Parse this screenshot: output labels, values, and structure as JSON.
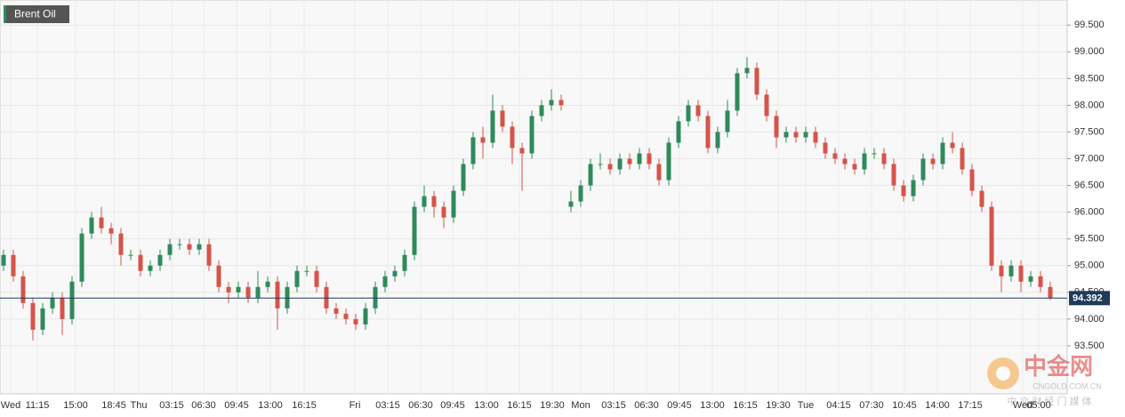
{
  "chart_data": {
    "type": "candlestick",
    "legend": "Brent Oil",
    "up_color": "#2f8a5b",
    "down_color": "#d5544a",
    "grid": true,
    "categories": [
      "Wed",
      "11:15",
      "15:00",
      "18:45",
      "Thu",
      "03:15",
      "06:30",
      "09:45",
      "13:00",
      "16:15",
      "Fri",
      "03:15",
      "06:30",
      "09:45",
      "13:00",
      "16:15",
      "19:30",
      "Mon",
      "03:15",
      "06:30",
      "09:45",
      "13:00",
      "16:15",
      "19:30",
      "Tue",
      "04:15",
      "07:30",
      "10:45",
      "14:00",
      "17:15",
      "Wed",
      "05:00"
    ],
    "open": [
      95.0,
      95.2,
      94.8,
      94.3,
      93.8,
      94.2,
      94.4,
      94.0,
      94.7,
      95.6,
      95.9,
      95.7,
      95.6,
      95.2,
      95.2,
      94.9,
      95.0,
      95.2,
      95.4,
      95.4,
      95.3,
      95.4,
      95.0,
      94.6,
      94.5,
      94.6,
      94.4,
      94.6,
      94.7,
      94.2,
      94.6,
      94.9,
      94.9,
      94.6,
      94.2,
      94.1,
      94.0,
      93.9,
      94.2,
      94.6,
      94.8,
      94.9,
      95.2,
      96.1,
      96.3,
      96.1,
      95.9,
      96.4,
      96.9,
      97.4,
      97.3,
      97.9,
      97.6,
      97.2,
      97.1,
      97.8,
      98.0,
      98.1,
      96.1,
      96.2,
      96.5,
      96.9,
      96.9,
      96.8,
      97.0,
      96.9,
      97.1,
      96.9,
      96.6,
      97.3,
      97.7,
      98.0,
      97.8,
      97.2,
      97.5,
      97.9,
      98.6,
      98.7,
      98.2,
      97.8,
      97.4,
      97.5,
      97.4,
      97.5,
      97.3,
      97.1,
      97.0,
      96.9,
      96.8,
      97.1,
      97.1,
      96.9,
      96.5,
      96.3,
      96.6,
      97.0,
      96.9,
      97.3,
      97.2,
      96.8,
      96.4,
      96.1,
      95.0,
      94.8,
      95.0,
      94.7,
      94.8,
      94.6
    ],
    "high": [
      95.3,
      95.3,
      94.9,
      94.4,
      94.3,
      94.5,
      94.5,
      94.8,
      95.7,
      96.0,
      96.1,
      95.8,
      95.7,
      95.3,
      95.3,
      95.1,
      95.3,
      95.5,
      95.5,
      95.5,
      95.5,
      95.5,
      95.1,
      94.7,
      94.7,
      94.7,
      94.9,
      94.8,
      94.8,
      94.7,
      95.0,
      95.0,
      95.0,
      94.7,
      94.3,
      94.2,
      94.1,
      94.3,
      94.7,
      94.9,
      95.0,
      95.3,
      96.2,
      96.5,
      96.4,
      96.2,
      96.5,
      97.0,
      97.5,
      97.6,
      98.2,
      98.0,
      97.7,
      97.3,
      97.9,
      98.1,
      98.3,
      98.2,
      96.4,
      96.6,
      97.0,
      97.1,
      97.0,
      97.1,
      97.1,
      97.2,
      97.2,
      97.0,
      97.4,
      97.8,
      98.1,
      98.1,
      97.9,
      97.6,
      98.1,
      98.7,
      98.9,
      98.8,
      98.3,
      97.9,
      97.6,
      97.6,
      97.6,
      97.6,
      97.4,
      97.2,
      97.1,
      97.0,
      97.2,
      97.2,
      97.2,
      97.0,
      96.6,
      96.7,
      97.1,
      97.1,
      97.4,
      97.5,
      97.3,
      96.9,
      96.5,
      96.2,
      95.1,
      95.1,
      95.1,
      94.9,
      94.9,
      94.7
    ],
    "low": [
      94.9,
      94.7,
      94.2,
      93.6,
      93.7,
      94.1,
      93.7,
      93.9,
      94.6,
      95.5,
      95.6,
      95.4,
      95.0,
      95.1,
      94.8,
      94.8,
      94.9,
      95.1,
      95.3,
      95.2,
      95.2,
      94.9,
      94.5,
      94.3,
      94.4,
      94.3,
      94.3,
      94.5,
      93.8,
      94.1,
      94.5,
      94.8,
      94.5,
      94.1,
      94.0,
      93.9,
      93.8,
      93.8,
      94.1,
      94.5,
      94.7,
      94.8,
      95.1,
      96.0,
      95.9,
      95.7,
      95.8,
      96.3,
      96.8,
      97.0,
      97.2,
      97.5,
      96.9,
      96.4,
      97.0,
      97.7,
      97.9,
      97.9,
      96.0,
      96.1,
      96.4,
      96.8,
      96.7,
      96.7,
      96.8,
      96.8,
      96.8,
      96.5,
      96.5,
      97.2,
      97.6,
      97.7,
      97.1,
      97.1,
      97.4,
      97.8,
      98.5,
      98.1,
      97.7,
      97.2,
      97.3,
      97.3,
      97.3,
      97.2,
      97.0,
      96.9,
      96.8,
      96.7,
      96.7,
      97.0,
      96.8,
      96.4,
      96.2,
      96.2,
      96.5,
      96.8,
      96.8,
      97.1,
      96.7,
      96.3,
      96.0,
      94.9,
      94.5,
      94.7,
      94.5,
      94.6,
      94.5,
      94.35
    ],
    "close": [
      95.2,
      94.8,
      94.3,
      93.8,
      94.2,
      94.4,
      94.0,
      94.7,
      95.6,
      95.9,
      95.7,
      95.6,
      95.2,
      95.2,
      94.9,
      95.0,
      95.2,
      95.4,
      95.4,
      95.3,
      95.4,
      95.0,
      94.6,
      94.5,
      94.6,
      94.4,
      94.6,
      94.7,
      94.2,
      94.6,
      94.9,
      94.9,
      94.6,
      94.2,
      94.1,
      94.0,
      93.9,
      94.2,
      94.6,
      94.8,
      94.9,
      95.2,
      96.1,
      96.3,
      96.1,
      95.9,
      96.4,
      96.9,
      97.4,
      97.3,
      97.9,
      97.6,
      97.2,
      97.1,
      97.8,
      98.0,
      98.1,
      98.0,
      96.2,
      96.5,
      96.9,
      96.9,
      96.8,
      97.0,
      96.9,
      97.1,
      96.9,
      96.6,
      97.3,
      97.7,
      98.0,
      97.8,
      97.2,
      97.5,
      97.9,
      98.6,
      98.7,
      98.2,
      97.8,
      97.4,
      97.5,
      97.4,
      97.5,
      97.3,
      97.1,
      97.0,
      96.9,
      96.8,
      97.1,
      97.1,
      96.9,
      96.5,
      96.3,
      96.6,
      97.0,
      96.9,
      97.3,
      97.2,
      96.8,
      96.4,
      96.1,
      95.0,
      94.8,
      95.0,
      94.7,
      94.8,
      94.6,
      94.392
    ],
    "last_price": 94.392,
    "ylim": [
      92.6,
      99.97
    ],
    "yticks": [
      {
        "value": 93.5,
        "label": "93.500"
      },
      {
        "value": 94,
        "label": "94.000"
      },
      {
        "value": 94.5,
        "label": "94.500"
      },
      {
        "value": 95,
        "label": "95.000"
      },
      {
        "value": 95.5,
        "label": "95.500"
      },
      {
        "value": 96,
        "label": "96.000"
      },
      {
        "value": 96.5,
        "label": "96.500"
      },
      {
        "value": 97,
        "label": "97.000"
      },
      {
        "value": 97.5,
        "label": "97.500"
      },
      {
        "value": 98,
        "label": "98.000"
      },
      {
        "value": 98.5,
        "label": "98.500"
      },
      {
        "value": 99,
        "label": "99.000"
      },
      {
        "value": 99.5,
        "label": "99.500"
      }
    ],
    "watermark": {
      "brand": "中金网",
      "site": "CNGOLD.COM.CN",
      "slogan": "中 文 财 经 门 媒 体"
    }
  }
}
